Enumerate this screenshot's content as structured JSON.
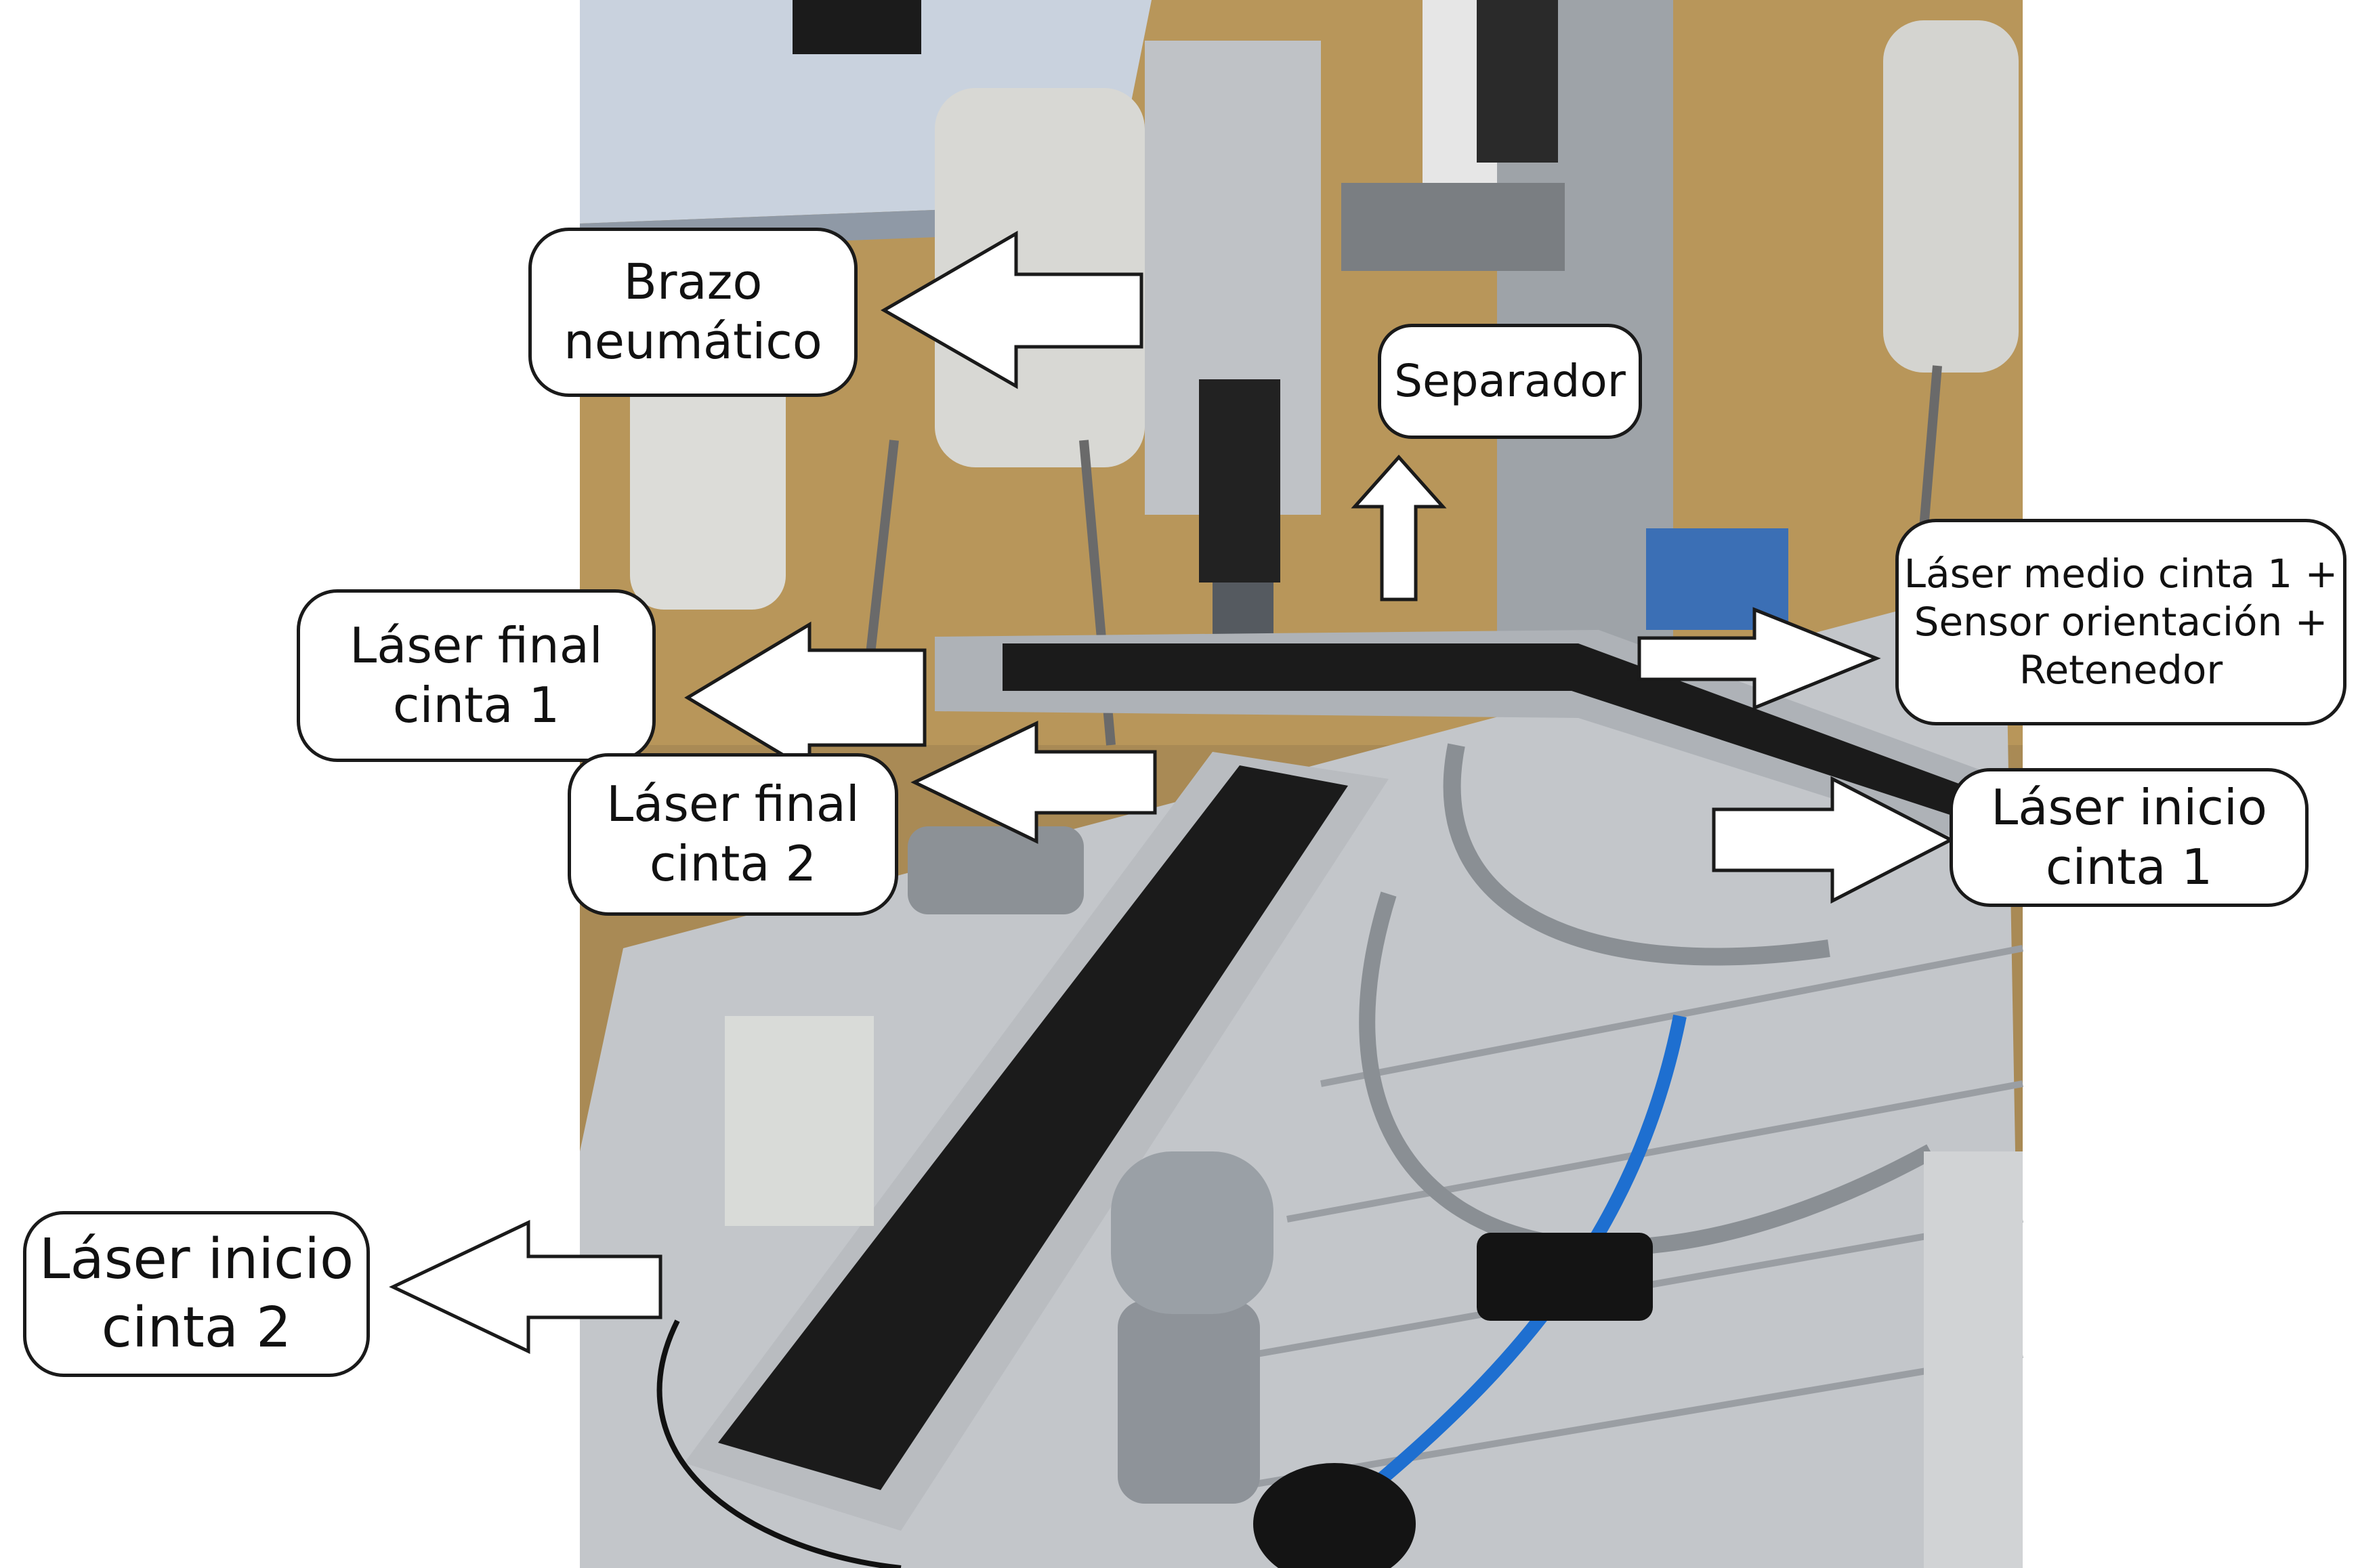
{
  "labels": {
    "brazo": [
      "Brazo",
      "neumático"
    ],
    "separador": [
      "Separador"
    ],
    "laser_final_1": [
      "Láser final",
      "cinta 1"
    ],
    "laser_final_2": [
      "Láser final",
      "cinta 2"
    ],
    "laser_medio_1": [
      "Láser medio cinta 1 +",
      "Sensor orientación +",
      "Retenedor"
    ],
    "laser_inicio_1": [
      "Láser inicio",
      "cinta 1"
    ],
    "laser_inicio_2": [
      "Láser inicio",
      "cinta 2"
    ]
  },
  "colors": {
    "belt": "#1b1b1b",
    "aluminium": "#b9bcc0",
    "pneumatic_tube": "#1e6fd0",
    "floor": "#b8965a"
  }
}
